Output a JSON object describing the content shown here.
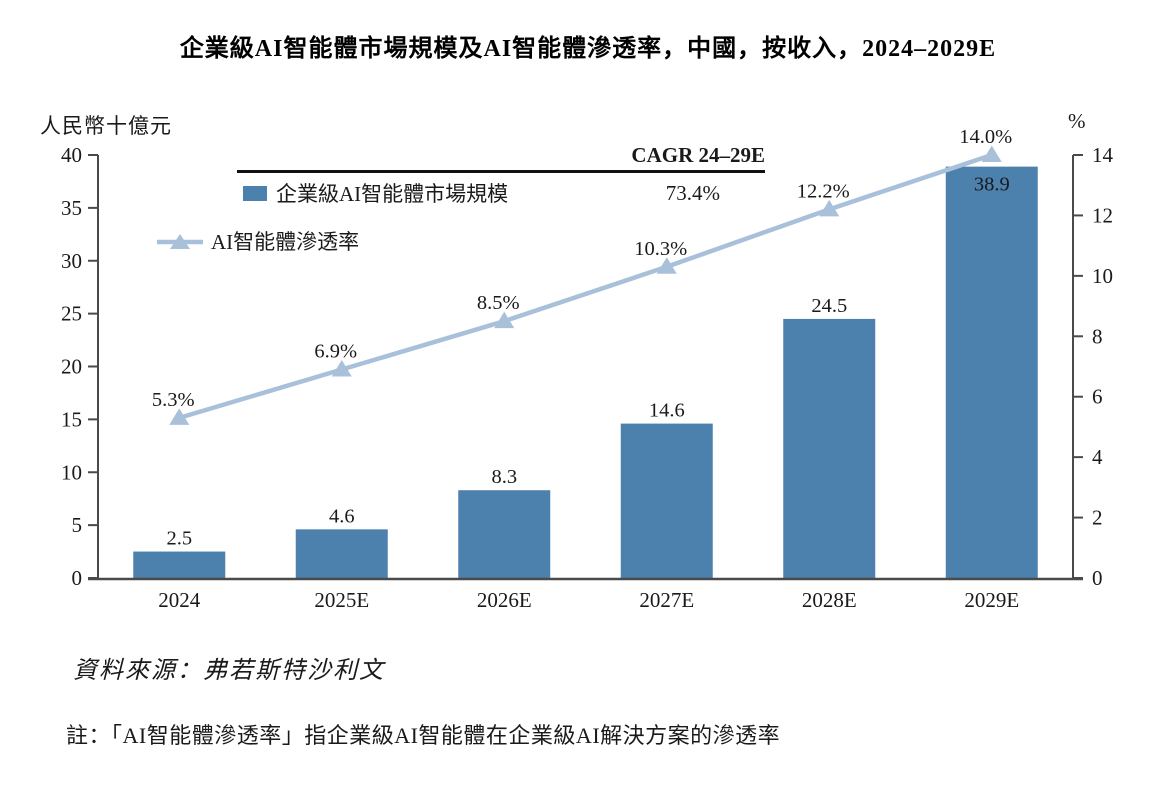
{
  "cagr": {
    "label": "CAGR 24–29E",
    "value": "73.4%"
  },
  "footer": {
    "source": "資料來源：弗若斯特沙利文",
    "note": "註：「AI智能體滲透率」指企業級AI智能體在企業級AI解決方案的滲透率"
  },
  "colors": {
    "bar": "#4c80ad",
    "line": "#a9c0da",
    "text": "#1a1a1a",
    "axis": "#4a4a4a"
  },
  "chart_data": {
    "type": "bar+line",
    "title": "企業級AI智能體市場規模及AI智能體滲透率，中國，按收入，2024–2029E",
    "categories": [
      "2024",
      "2025E",
      "2026E",
      "2027E",
      "2028E",
      "2029E"
    ],
    "series": [
      {
        "name": "企業級AI智能體市場規模",
        "type": "bar",
        "axis": "left",
        "values": [
          2.5,
          4.6,
          8.3,
          14.6,
          24.5,
          38.9
        ],
        "cagr_24_29e": "73.4%"
      },
      {
        "name": "AI智能體滲透率",
        "type": "line",
        "axis": "right",
        "values": [
          5.3,
          6.9,
          8.5,
          10.3,
          12.2,
          14.0
        ],
        "value_suffix": "%"
      }
    ],
    "left_axis": {
      "label": "人民幣十億元",
      "min": 0,
      "max": 40,
      "step": 5
    },
    "right_axis": {
      "label": "%",
      "min": 0,
      "max": 14,
      "step": 2
    },
    "legend_position": "top-left",
    "grid": false
  }
}
